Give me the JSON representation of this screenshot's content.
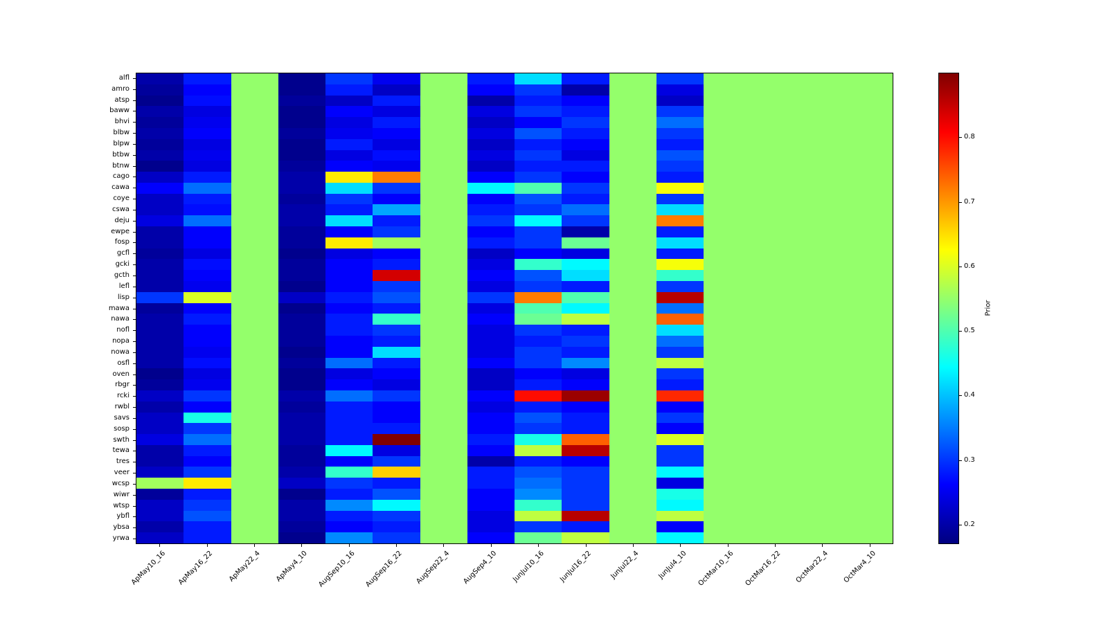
{
  "chart_data": {
    "type": "heatmap",
    "colormap": "jet",
    "vmin": 0.17,
    "vmax": 0.9,
    "grid": "off",
    "colorbar": {
      "label": "Prior",
      "ticks": [
        0.2,
        0.3,
        0.4,
        0.5,
        0.6,
        0.7,
        0.8
      ],
      "position": "right"
    },
    "columns": [
      "ApMay10_16",
      "ApMay16_22",
      "ApMay22_4",
      "ApMay4_10",
      "AugSep10_16",
      "AugSep16_22",
      "AugSep22_4",
      "AugSep4_10",
      "JunJul10_16",
      "JunJul16_22",
      "JunJul22_4",
      "JunJul4_10",
      "OctMar10_16",
      "OctMar16_22",
      "OctMar22_4",
      "OctMar4_10"
    ],
    "rows": [
      "alfl",
      "amro",
      "atsp",
      "baww",
      "bhvi",
      "blbw",
      "blpw",
      "btbw",
      "btnw",
      "cago",
      "cawa",
      "coye",
      "cswa",
      "deju",
      "ewpe",
      "fosp",
      "gcfl",
      "gcki",
      "gcth",
      "lefl",
      "lisp",
      "mawa",
      "nawa",
      "nofl",
      "nopa",
      "nowa",
      "osfl",
      "oven",
      "rbgr",
      "rcki",
      "rwbl",
      "savs",
      "sosp",
      "swth",
      "tewa",
      "tres",
      "veer",
      "wcsp",
      "wiwr",
      "wtsp",
      "ybfl",
      "ybsa",
      "yrwa"
    ],
    "values": [
      [
        0.2,
        0.28,
        0.55,
        0.18,
        0.3,
        0.25,
        0.55,
        0.28,
        0.42,
        0.28,
        0.55,
        0.3,
        0.55,
        0.55,
        0.55,
        0.55
      ],
      [
        0.19,
        0.26,
        0.55,
        0.18,
        0.28,
        0.22,
        0.55,
        0.26,
        0.3,
        0.2,
        0.55,
        0.24,
        0.55,
        0.55,
        0.55,
        0.55
      ],
      [
        0.18,
        0.27,
        0.55,
        0.19,
        0.22,
        0.28,
        0.55,
        0.2,
        0.28,
        0.26,
        0.55,
        0.22,
        0.55,
        0.55,
        0.55,
        0.55
      ],
      [
        0.2,
        0.24,
        0.55,
        0.18,
        0.26,
        0.24,
        0.55,
        0.24,
        0.3,
        0.28,
        0.55,
        0.3,
        0.55,
        0.55,
        0.55,
        0.55
      ],
      [
        0.19,
        0.25,
        0.55,
        0.18,
        0.24,
        0.28,
        0.55,
        0.22,
        0.26,
        0.3,
        0.55,
        0.34,
        0.55,
        0.55,
        0.55,
        0.55
      ],
      [
        0.2,
        0.26,
        0.55,
        0.19,
        0.25,
        0.26,
        0.55,
        0.24,
        0.32,
        0.28,
        0.55,
        0.3,
        0.55,
        0.55,
        0.55,
        0.55
      ],
      [
        0.19,
        0.24,
        0.55,
        0.18,
        0.28,
        0.24,
        0.55,
        0.22,
        0.28,
        0.26,
        0.55,
        0.28,
        0.55,
        0.55,
        0.55,
        0.55
      ],
      [
        0.2,
        0.25,
        0.55,
        0.18,
        0.24,
        0.27,
        0.55,
        0.24,
        0.3,
        0.24,
        0.55,
        0.32,
        0.55,
        0.55,
        0.55,
        0.55
      ],
      [
        0.18,
        0.24,
        0.55,
        0.19,
        0.26,
        0.25,
        0.55,
        0.22,
        0.28,
        0.28,
        0.55,
        0.3,
        0.55,
        0.55,
        0.55,
        0.55
      ],
      [
        0.22,
        0.28,
        0.55,
        0.2,
        0.64,
        0.72,
        0.55,
        0.26,
        0.3,
        0.26,
        0.55,
        0.28,
        0.55,
        0.55,
        0.55,
        0.55
      ],
      [
        0.26,
        0.34,
        0.55,
        0.2,
        0.42,
        0.3,
        0.55,
        0.44,
        0.5,
        0.3,
        0.55,
        0.62,
        0.55,
        0.55,
        0.55,
        0.55
      ],
      [
        0.22,
        0.28,
        0.55,
        0.19,
        0.3,
        0.26,
        0.55,
        0.26,
        0.32,
        0.28,
        0.55,
        0.3,
        0.55,
        0.55,
        0.55,
        0.55
      ],
      [
        0.22,
        0.27,
        0.55,
        0.2,
        0.28,
        0.38,
        0.55,
        0.28,
        0.3,
        0.34,
        0.55,
        0.42,
        0.55,
        0.55,
        0.55,
        0.55
      ],
      [
        0.24,
        0.34,
        0.55,
        0.2,
        0.42,
        0.28,
        0.55,
        0.3,
        0.44,
        0.3,
        0.55,
        0.72,
        0.55,
        0.55,
        0.55,
        0.55
      ],
      [
        0.2,
        0.26,
        0.55,
        0.19,
        0.26,
        0.3,
        0.55,
        0.26,
        0.3,
        0.2,
        0.55,
        0.28,
        0.55,
        0.55,
        0.55,
        0.55
      ],
      [
        0.2,
        0.26,
        0.55,
        0.19,
        0.64,
        0.56,
        0.55,
        0.28,
        0.3,
        0.52,
        0.55,
        0.42,
        0.55,
        0.55,
        0.55,
        0.55
      ],
      [
        0.19,
        0.24,
        0.55,
        0.18,
        0.24,
        0.26,
        0.55,
        0.22,
        0.26,
        0.24,
        0.55,
        0.28,
        0.55,
        0.55,
        0.55,
        0.55
      ],
      [
        0.2,
        0.27,
        0.55,
        0.19,
        0.26,
        0.28,
        0.55,
        0.24,
        0.48,
        0.44,
        0.55,
        0.62,
        0.55,
        0.55,
        0.55,
        0.55
      ],
      [
        0.2,
        0.26,
        0.55,
        0.19,
        0.26,
        0.84,
        0.55,
        0.26,
        0.32,
        0.42,
        0.55,
        0.48,
        0.55,
        0.55,
        0.55,
        0.55
      ],
      [
        0.2,
        0.25,
        0.55,
        0.18,
        0.26,
        0.3,
        0.55,
        0.24,
        0.3,
        0.28,
        0.55,
        0.3,
        0.55,
        0.55,
        0.55,
        0.55
      ],
      [
        0.3,
        0.6,
        0.55,
        0.22,
        0.28,
        0.32,
        0.55,
        0.3,
        0.72,
        0.5,
        0.55,
        0.86,
        0.55,
        0.55,
        0.55,
        0.55
      ],
      [
        0.19,
        0.26,
        0.55,
        0.18,
        0.26,
        0.28,
        0.55,
        0.24,
        0.5,
        0.44,
        0.55,
        0.34,
        0.55,
        0.55,
        0.55,
        0.55
      ],
      [
        0.2,
        0.28,
        0.55,
        0.19,
        0.28,
        0.48,
        0.55,
        0.26,
        0.52,
        0.58,
        0.55,
        0.74,
        0.55,
        0.55,
        0.55,
        0.55
      ],
      [
        0.2,
        0.26,
        0.55,
        0.19,
        0.28,
        0.3,
        0.55,
        0.24,
        0.3,
        0.28,
        0.55,
        0.42,
        0.55,
        0.55,
        0.55,
        0.55
      ],
      [
        0.2,
        0.26,
        0.55,
        0.19,
        0.26,
        0.28,
        0.55,
        0.24,
        0.28,
        0.3,
        0.55,
        0.34,
        0.55,
        0.55,
        0.55,
        0.55
      ],
      [
        0.2,
        0.25,
        0.55,
        0.18,
        0.26,
        0.42,
        0.55,
        0.24,
        0.3,
        0.28,
        0.55,
        0.3,
        0.55,
        0.55,
        0.55,
        0.55
      ],
      [
        0.2,
        0.27,
        0.55,
        0.19,
        0.34,
        0.28,
        0.55,
        0.26,
        0.3,
        0.36,
        0.55,
        0.58,
        0.55,
        0.55,
        0.55,
        0.55
      ],
      [
        0.18,
        0.24,
        0.55,
        0.18,
        0.24,
        0.26,
        0.55,
        0.22,
        0.26,
        0.24,
        0.55,
        0.3,
        0.55,
        0.55,
        0.55,
        0.55
      ],
      [
        0.19,
        0.25,
        0.55,
        0.18,
        0.26,
        0.24,
        0.55,
        0.22,
        0.28,
        0.26,
        0.55,
        0.28,
        0.55,
        0.55,
        0.55,
        0.55
      ],
      [
        0.22,
        0.3,
        0.55,
        0.2,
        0.34,
        0.3,
        0.55,
        0.26,
        0.8,
        0.88,
        0.55,
        0.78,
        0.55,
        0.55,
        0.55,
        0.55
      ],
      [
        0.2,
        0.26,
        0.55,
        0.19,
        0.28,
        0.26,
        0.55,
        0.24,
        0.28,
        0.26,
        0.55,
        0.26,
        0.55,
        0.55,
        0.55,
        0.55
      ],
      [
        0.22,
        0.46,
        0.55,
        0.2,
        0.28,
        0.26,
        0.55,
        0.26,
        0.32,
        0.28,
        0.55,
        0.3,
        0.55,
        0.55,
        0.55,
        0.55
      ],
      [
        0.22,
        0.3,
        0.55,
        0.2,
        0.28,
        0.28,
        0.55,
        0.26,
        0.3,
        0.28,
        0.55,
        0.26,
        0.55,
        0.55,
        0.55,
        0.55
      ],
      [
        0.24,
        0.34,
        0.55,
        0.2,
        0.28,
        0.9,
        0.55,
        0.28,
        0.46,
        0.74,
        0.55,
        0.6,
        0.55,
        0.55,
        0.55,
        0.55
      ],
      [
        0.2,
        0.28,
        0.55,
        0.19,
        0.44,
        0.24,
        0.55,
        0.26,
        0.58,
        0.86,
        0.55,
        0.3,
        0.55,
        0.55,
        0.55,
        0.55
      ],
      [
        0.2,
        0.26,
        0.55,
        0.19,
        0.26,
        0.3,
        0.55,
        0.2,
        0.28,
        0.26,
        0.55,
        0.3,
        0.55,
        0.55,
        0.55,
        0.55
      ],
      [
        0.22,
        0.3,
        0.55,
        0.2,
        0.48,
        0.66,
        0.55,
        0.28,
        0.32,
        0.3,
        0.55,
        0.44,
        0.55,
        0.55,
        0.55,
        0.55
      ],
      [
        0.56,
        0.64,
        0.55,
        0.22,
        0.3,
        0.28,
        0.55,
        0.28,
        0.34,
        0.3,
        0.55,
        0.24,
        0.55,
        0.55,
        0.55,
        0.55
      ],
      [
        0.19,
        0.28,
        0.55,
        0.18,
        0.28,
        0.32,
        0.55,
        0.26,
        0.36,
        0.3,
        0.55,
        0.46,
        0.55,
        0.55,
        0.55,
        0.55
      ],
      [
        0.22,
        0.3,
        0.55,
        0.2,
        0.36,
        0.44,
        0.55,
        0.26,
        0.48,
        0.3,
        0.55,
        0.44,
        0.55,
        0.55,
        0.55,
        0.55
      ],
      [
        0.22,
        0.32,
        0.55,
        0.2,
        0.28,
        0.3,
        0.55,
        0.24,
        0.58,
        0.86,
        0.55,
        0.58,
        0.55,
        0.55,
        0.55,
        0.55
      ],
      [
        0.2,
        0.28,
        0.55,
        0.19,
        0.26,
        0.28,
        0.55,
        0.24,
        0.3,
        0.28,
        0.55,
        0.26,
        0.55,
        0.55,
        0.55,
        0.55
      ],
      [
        0.22,
        0.28,
        0.55,
        0.18,
        0.36,
        0.3,
        0.55,
        0.26,
        0.52,
        0.58,
        0.55,
        0.44,
        0.55,
        0.55,
        0.55,
        0.55
      ]
    ]
  }
}
